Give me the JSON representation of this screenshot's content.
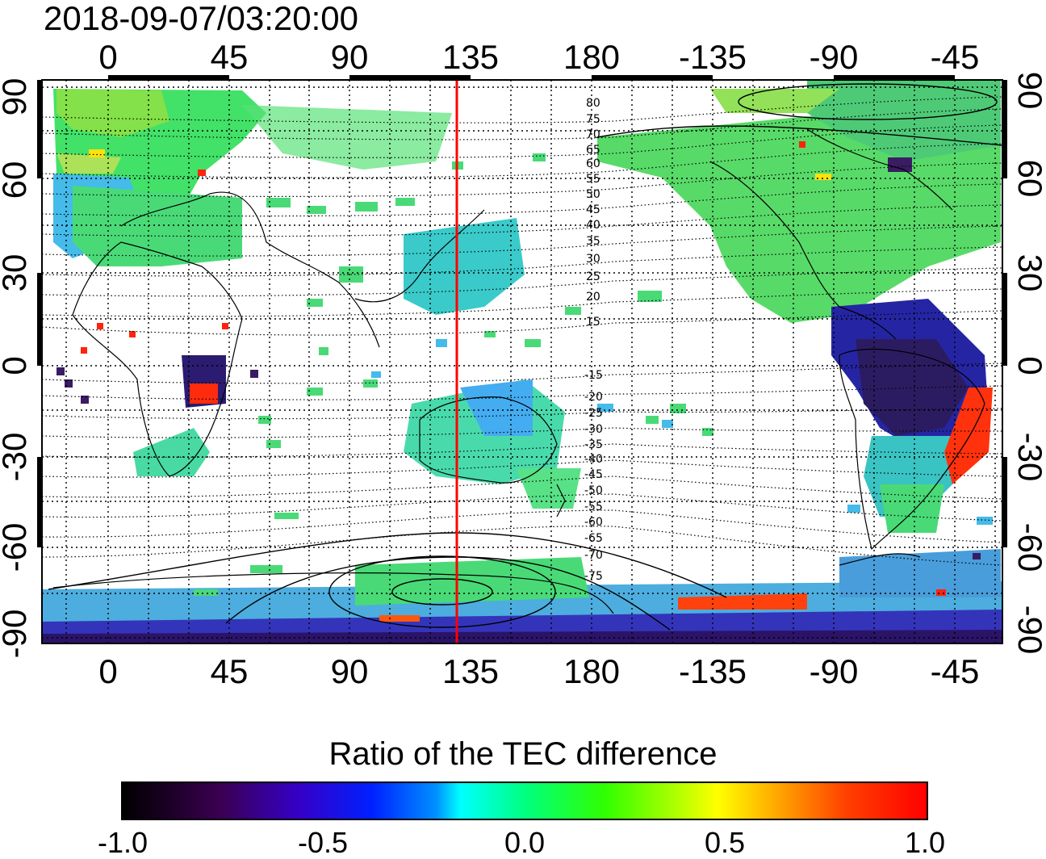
{
  "title": "2018-09-07/03:20:00",
  "axes": {
    "longitude_ticks": [
      "0",
      "45",
      "90",
      "135",
      "180",
      "-135",
      "-90",
      "-45"
    ],
    "latitude_ticks": [
      "90",
      "60",
      "30",
      "0",
      "-30",
      "-60",
      "-90"
    ],
    "longitude_range": [
      -20,
      340
    ],
    "latitude_range": [
      -92,
      92
    ]
  },
  "map": {
    "meridian_line_longitude": 130,
    "meridian_line_color": "#ff0000",
    "magnetic_latitude_labels_north": [
      "80",
      "75",
      "70",
      "65",
      "60",
      "55",
      "50",
      "45",
      "40",
      "35",
      "30",
      "25",
      "20",
      "15"
    ],
    "magnetic_latitude_labels_south": [
      "-15",
      "-20",
      "-25",
      "-30",
      "-35",
      "-40",
      "-45",
      "-50",
      "-55",
      "-60",
      "-65",
      "-70",
      "-75"
    ],
    "colormap": "ratio of TEC difference, -1.0 (black) through blue, cyan, green, yellow to 1.0 (red)"
  },
  "colorbar": {
    "title": "Ratio of the TEC difference",
    "tick_labels": [
      "-1.0",
      "-0.5",
      "0.0",
      "0.5",
      "1.0"
    ],
    "range": [
      -1.0,
      1.0
    ]
  }
}
